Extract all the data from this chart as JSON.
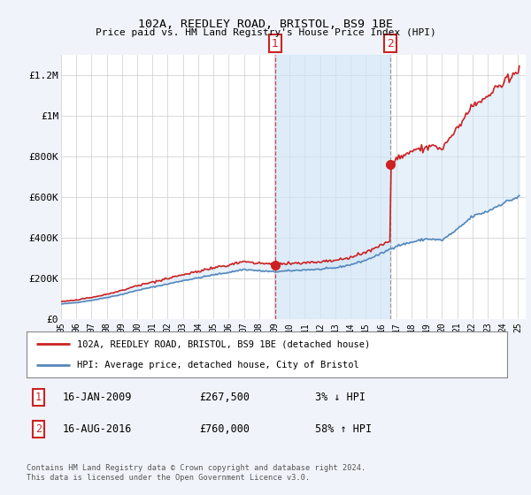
{
  "title": "102A, REEDLEY ROAD, BRISTOL, BS9 1BE",
  "subtitle": "Price paid vs. HM Land Registry's House Price Index (HPI)",
  "xlim_start": 1995.0,
  "xlim_end": 2025.5,
  "ylim": [
    0,
    1300000
  ],
  "yticks": [
    0,
    200000,
    400000,
    600000,
    800000,
    1000000,
    1200000
  ],
  "ytick_labels": [
    "£0",
    "£200K",
    "£400K",
    "£600K",
    "£800K",
    "£1M",
    "£1.2M"
  ],
  "xtick_years": [
    1995,
    1996,
    1997,
    1998,
    1999,
    2000,
    2001,
    2002,
    2003,
    2004,
    2005,
    2006,
    2007,
    2008,
    2009,
    2010,
    2011,
    2012,
    2013,
    2014,
    2015,
    2016,
    2017,
    2018,
    2019,
    2020,
    2021,
    2022,
    2023,
    2024,
    2025
  ],
  "hpi_color": "#5588bb",
  "property_color": "#cc2222",
  "sale1_year": 2009.04,
  "sale1_price": 267500,
  "sale2_year": 2016.62,
  "sale2_price": 760000,
  "shade_color": "#d0e4f7",
  "legend_property": "102A, REEDLEY ROAD, BRISTOL, BS9 1BE (detached house)",
  "legend_hpi": "HPI: Average price, detached house, City of Bristol",
  "footer": "Contains HM Land Registry data © Crown copyright and database right 2024.\nThis data is licensed under the Open Government Licence v3.0.",
  "bg_color": "#f0f4fa",
  "plot_bg": "#ffffff"
}
